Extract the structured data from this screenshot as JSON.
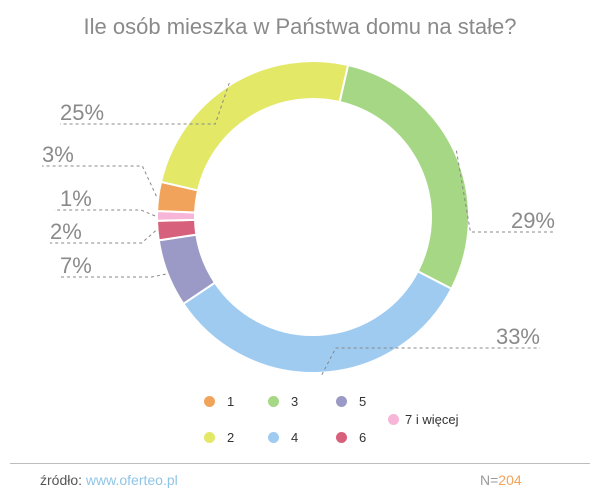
{
  "chart_data": {
    "type": "pie",
    "title": "Ile osób mieszka w Państwa domu na stałe?",
    "categories": [
      "1",
      "2",
      "3",
      "4",
      "5",
      "6",
      "7 i więcej"
    ],
    "values": [
      3,
      25,
      29,
      33,
      7,
      2,
      1
    ],
    "value_labels": [
      "3%",
      "25%",
      "29%",
      "33%",
      "7%",
      "2%",
      "1%"
    ],
    "colors": [
      "#f2a35b",
      "#e3e867",
      "#a5d785",
      "#9fcbf1",
      "#9b9ac6",
      "#d7607c",
      "#f7b6d8"
    ],
    "legend_placement": "bottom"
  },
  "footer": {
    "source_label": "źródło:",
    "source_link": "www.oferteo.pl",
    "n_label": "N=",
    "n_value": "204"
  }
}
